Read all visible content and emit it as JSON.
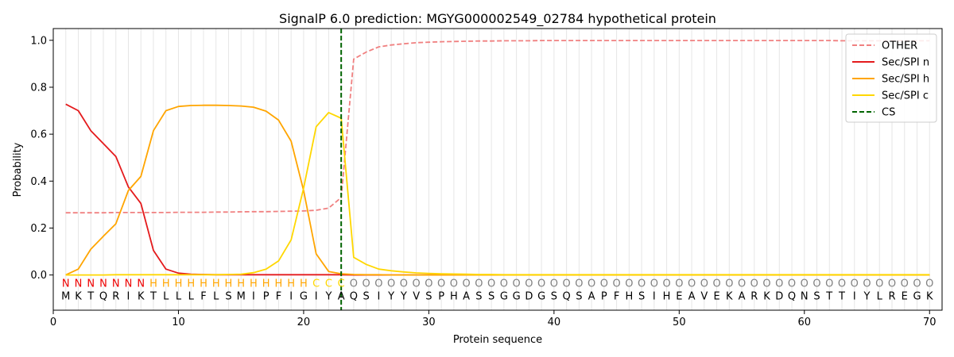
{
  "chart_data": {
    "type": "line",
    "title": "SignalP 6.0 prediction: MGYG000002549_02784 hypothetical protein",
    "xlabel": "Protein sequence",
    "ylabel": "Probability",
    "xlim": [
      0,
      71
    ],
    "ylim": [
      -0.15,
      1.05
    ],
    "x_ticks": [
      0,
      10,
      20,
      30,
      40,
      50,
      60,
      70
    ],
    "y_ticks": [
      0.0,
      0.2,
      0.4,
      0.6,
      0.8,
      1.0
    ],
    "x_tick_labels": [
      "0",
      "10",
      "20",
      "30",
      "40",
      "50",
      "60",
      "70"
    ],
    "y_tick_labels": [
      "0.0",
      "0.2",
      "0.4",
      "0.6",
      "0.8",
      "1.0"
    ],
    "grid": "vertical lines at each residue",
    "legend_position": "top-right",
    "sequence": [
      "M",
      "K",
      "T",
      "Q",
      "R",
      "I",
      "K",
      "T",
      "L",
      "L",
      "L",
      "F",
      "L",
      "S",
      "M",
      "I",
      "P",
      "F",
      "I",
      "G",
      "I",
      "Y",
      "A",
      "Q",
      "S",
      "I",
      "Y",
      "Y",
      "V",
      "S",
      "P",
      "H",
      "A",
      "S",
      "S",
      "G",
      "G",
      "D",
      "G",
      "S",
      "Q",
      "S",
      "A",
      "P",
      "F",
      "H",
      "S",
      "I",
      "H",
      "E",
      "A",
      "V",
      "E",
      "K",
      "A",
      "R",
      "K",
      "D",
      "Q",
      "N",
      "S",
      "T",
      "T",
      "I",
      "Y",
      "L",
      "R",
      "E",
      "G",
      "K"
    ],
    "labels": [
      "N",
      "N",
      "N",
      "N",
      "N",
      "N",
      "N",
      "H",
      "H",
      "H",
      "H",
      "H",
      "H",
      "H",
      "H",
      "H",
      "H",
      "H",
      "H",
      "H",
      "C",
      "C",
      "C",
      "O",
      "O",
      "O",
      "O",
      "O",
      "O",
      "O",
      "O",
      "O",
      "O",
      "O",
      "O",
      "O",
      "O",
      "O",
      "O",
      "O",
      "O",
      "O",
      "O",
      "O",
      "O",
      "O",
      "O",
      "O",
      "O",
      "O",
      "O",
      "O",
      "O",
      "O",
      "O",
      "O",
      "O",
      "O",
      "O",
      "O",
      "O",
      "O",
      "O",
      "O",
      "O",
      "O",
      "O",
      "O",
      "O",
      "O"
    ],
    "label_colors": {
      "N": "#ee0000",
      "H": "#ffa500",
      "C": "#ffd700",
      "O": "#808080"
    },
    "cs_position": 23,
    "series": [
      {
        "name": "OTHER",
        "color": "#f08080",
        "dash": "dashed",
        "values": [
          0.265,
          0.265,
          0.265,
          0.265,
          0.266,
          0.266,
          0.266,
          0.266,
          0.266,
          0.267,
          0.267,
          0.267,
          0.268,
          0.268,
          0.269,
          0.27,
          0.27,
          0.271,
          0.272,
          0.273,
          0.276,
          0.285,
          0.33,
          0.92,
          0.95,
          0.972,
          0.98,
          0.985,
          0.99,
          0.992,
          0.994,
          0.995,
          0.996,
          0.997,
          0.997,
          0.998,
          0.998,
          0.998,
          0.999,
          0.999,
          0.999,
          0.999,
          0.999,
          0.999,
          0.999,
          0.999,
          0.999,
          0.999,
          0.999,
          0.999,
          0.999,
          0.999,
          0.999,
          0.999,
          0.999,
          0.999,
          0.999,
          0.999,
          0.999,
          0.999,
          0.999,
          0.999,
          0.998,
          0.998,
          0.998,
          0.998,
          0.998,
          0.998,
          0.998,
          0.998
        ]
      },
      {
        "name": "Sec/SPI n",
        "color": "#e41a1c",
        "dash": "solid",
        "values": [
          0.728,
          0.7,
          0.615,
          0.56,
          0.505,
          0.375,
          0.305,
          0.105,
          0.025,
          0.008,
          0.003,
          0.002,
          0.001,
          0.001,
          0.001,
          0.001,
          0.001,
          0.001,
          0.001,
          0.001,
          0.001,
          0.001,
          0.001,
          0,
          0,
          0,
          0,
          0,
          0,
          0,
          0,
          0,
          0,
          0,
          0,
          0,
          0,
          0,
          0,
          0,
          0,
          0,
          0,
          0,
          0,
          0,
          0,
          0,
          0,
          0,
          0,
          0,
          0,
          0,
          0,
          0,
          0,
          0,
          0,
          0,
          0,
          0,
          0,
          0,
          0,
          0,
          0,
          0,
          0,
          0
        ]
      },
      {
        "name": "Sec/SPI h",
        "color": "#ffa500",
        "dash": "solid",
        "values": [
          0.0,
          0.025,
          0.11,
          0.165,
          0.218,
          0.36,
          0.42,
          0.615,
          0.7,
          0.718,
          0.722,
          0.723,
          0.723,
          0.722,
          0.72,
          0.715,
          0.698,
          0.66,
          0.57,
          0.36,
          0.09,
          0.015,
          0.005,
          0.002,
          0.001,
          0.001,
          0,
          0,
          0,
          0,
          0,
          0,
          0,
          0,
          0,
          0,
          0,
          0,
          0,
          0,
          0,
          0,
          0,
          0,
          0,
          0,
          0,
          0,
          0,
          0,
          0,
          0,
          0,
          0,
          0,
          0,
          0,
          0,
          0,
          0,
          0,
          0,
          0,
          0,
          0,
          0,
          0,
          0,
          0,
          0
        ]
      },
      {
        "name": "Sec/SPI c",
        "color": "#ffd700",
        "dash": "solid",
        "values": [
          0.0,
          0.0,
          0.0,
          0.0,
          0.001,
          0.001,
          0.001,
          0.001,
          0.001,
          0.001,
          0.001,
          0.001,
          0.001,
          0.002,
          0.003,
          0.01,
          0.025,
          0.06,
          0.15,
          0.37,
          0.632,
          0.692,
          0.668,
          0.075,
          0.045,
          0.025,
          0.018,
          0.013,
          0.009,
          0.007,
          0.005,
          0.004,
          0.003,
          0.002,
          0.002,
          0.001,
          0.001,
          0.001,
          0.001,
          0.001,
          0.001,
          0.001,
          0.001,
          0.001,
          0.001,
          0.001,
          0.001,
          0.001,
          0.001,
          0.001,
          0.001,
          0.001,
          0.001,
          0.001,
          0.001,
          0.001,
          0.001,
          0.001,
          0.001,
          0.001,
          0.001,
          0.001,
          0.001,
          0.001,
          0.001,
          0.001,
          0.001,
          0.001,
          0.001,
          0.001
        ]
      },
      {
        "name": "CS",
        "color": "#006400",
        "dash": "dashed",
        "type": "vertical_line",
        "x": 23
      }
    ]
  }
}
